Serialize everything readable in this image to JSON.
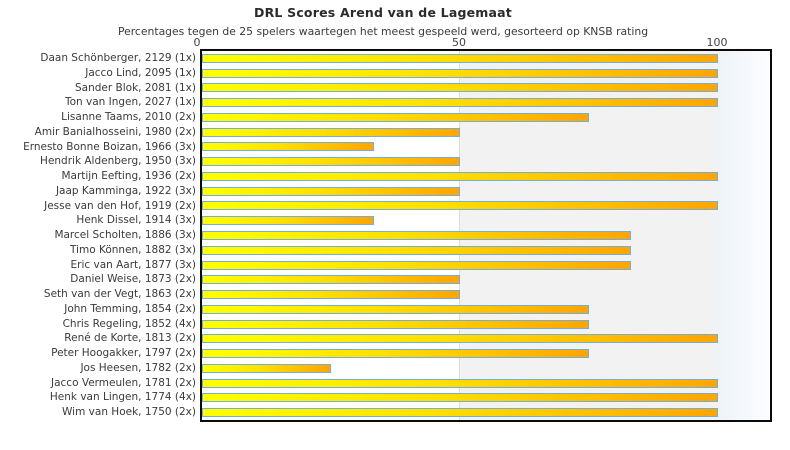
{
  "title": "DRL Scores Arend van de Lagemaat",
  "subtitle": "Percentages tegen de 25 spelers waartegen het meest gespeeld werd, gesorteerd op KNSB rating",
  "axis": {
    "ticks": [
      "0",
      "50",
      "100"
    ]
  },
  "colors": {
    "bar_gradient_start": "#ffff00",
    "bar_gradient_end": "#ffa500",
    "bar_border": "#74afd9",
    "shaded_region": "#f2f2f2",
    "plot_border": "#0a0a0a",
    "text": "#3a3a3a"
  },
  "chart_data": {
    "type": "bar",
    "orientation": "horizontal",
    "title": "DRL Scores Arend van de Lagemaat",
    "subtitle": "Percentages tegen de 25 spelers waartegen het meest gespeeld werd, gesorteerd op KNSB rating",
    "xlabel": "",
    "ylabel": "",
    "xlim": [
      0,
      110
    ],
    "xticks": [
      0,
      50,
      100
    ],
    "grid": "vertical-ticks-only",
    "legend": false,
    "shaded_band_x": [
      50,
      110
    ],
    "categories": [
      "Daan Schönberger, 2129 (1x)",
      "Jacco Lind, 2095 (1x)",
      "Sander Blok, 2081 (1x)",
      "Ton van Ingen, 2027 (1x)",
      "Lisanne Taams, 2010 (2x)",
      "Amir Banialhosseini, 1980 (2x)",
      "Ernesto Bonne Boizan, 1966 (3x)",
      "Hendrik Aldenberg, 1950 (3x)",
      "Martijn Eefting, 1936 (2x)",
      "Jaap Kamminga, 1922 (3x)",
      "Jesse van den Hof, 1919 (2x)",
      "Henk Dissel, 1914 (3x)",
      "Marcel Scholten, 1886 (3x)",
      "Timo Können, 1882 (3x)",
      "Eric van Aart, 1877 (3x)",
      "Daniel Weise, 1873 (2x)",
      "Seth van der Vegt, 1863 (2x)",
      "John Temming, 1854 (2x)",
      "Chris Regeling, 1852 (4x)",
      "René de Korte, 1813 (2x)",
      "Peter Hoogakker, 1797 (2x)",
      "Jos Heesen, 1782 (2x)",
      "Jacco Vermeulen, 1781 (2x)",
      "Henk van Lingen, 1774 (4x)",
      "Wim van Hoek, 1750 (2x)"
    ],
    "values": [
      100,
      100,
      100,
      100,
      75,
      50,
      33.3,
      50,
      100,
      50,
      100,
      33.3,
      83.3,
      83.3,
      83.3,
      50,
      50,
      75,
      75,
      100,
      75,
      25,
      100,
      100,
      100
    ]
  }
}
